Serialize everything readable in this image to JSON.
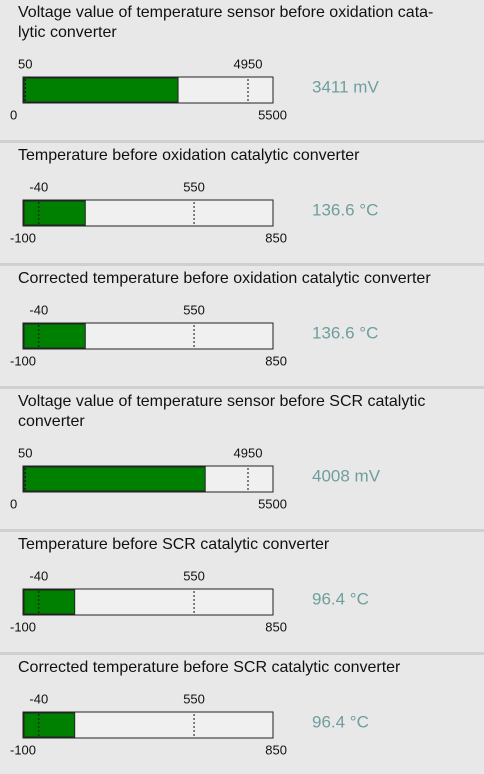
{
  "panels": [
    {
      "title_lines": [
        "Voltage value of temperature sensor before oxidation cata-",
        "lytic converter"
      ],
      "min": 0,
      "max": 5500,
      "low": 50,
      "high": 4950,
      "value": 3411,
      "value_label": "3411 mV"
    },
    {
      "title_lines": [
        "Temperature before oxidation catalytic converter"
      ],
      "min": -100,
      "max": 850,
      "low": -40,
      "high": 550,
      "value": 136.6,
      "value_label": "136.6 °C"
    },
    {
      "title_lines": [
        "Corrected temperature before oxidation catalytic converter"
      ],
      "min": -100,
      "max": 850,
      "low": -40,
      "high": 550,
      "value": 136.6,
      "value_label": "136.6 °C"
    },
    {
      "title_lines": [
        "Voltage value of temperature sensor before SCR catalytic",
        "converter"
      ],
      "min": 0,
      "max": 5500,
      "low": 50,
      "high": 4950,
      "value": 4008,
      "value_label": "4008 mV"
    },
    {
      "title_lines": [
        "Temperature before SCR catalytic converter"
      ],
      "min": -100,
      "max": 850,
      "low": -40,
      "high": 550,
      "value": 96.4,
      "value_label": "96.4 °C"
    },
    {
      "title_lines": [
        "Corrected temperature before SCR catalytic converter"
      ],
      "min": -100,
      "max": 850,
      "low": -40,
      "high": 550,
      "value": 96.4,
      "value_label": "96.4 °C"
    }
  ]
}
